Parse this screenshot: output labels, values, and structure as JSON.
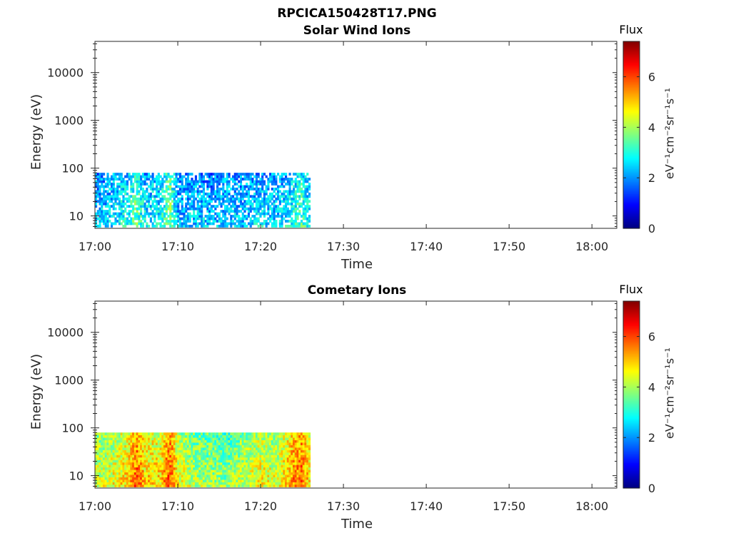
{
  "figure": {
    "title": "RPCICA150428T17.PNG"
  },
  "colorbar": {
    "label": "Flux",
    "unit_label": "eV⁻¹cm⁻²sr⁻¹s⁻¹",
    "colormap": "jet",
    "range": [
      0,
      7.4
    ],
    "ticks": [
      "0",
      "2",
      "4",
      "6"
    ]
  },
  "chart_data": [
    {
      "type": "heatmap",
      "title": "Solar Wind Ions",
      "xlabel": "Time",
      "ylabel": "Energy (eV)",
      "yscale": "log",
      "ylim": [
        5.5,
        45000
      ],
      "xlim": [
        "17:00",
        "18:03"
      ],
      "x_ticks": [
        "17:00",
        "17:10",
        "17:20",
        "17:30",
        "17:40",
        "17:50",
        "18:00"
      ],
      "y_ticks": [
        "10",
        "100",
        "1000",
        "10000"
      ],
      "data_time_range": [
        "17:00",
        "17:26"
      ],
      "data_energy_range": [
        5.8,
        80
      ],
      "profile": {
        "times": [
          "17:00",
          "17:02",
          "17:04",
          "17:05",
          "17:06",
          "17:08",
          "17:09",
          "17:10",
          "17:12",
          "17:14",
          "17:16",
          "17:18",
          "17:20",
          "17:22",
          "17:24",
          "17:25",
          "17:26"
        ],
        "flux": [
          2.4,
          2.6,
          3.0,
          3.6,
          2.7,
          2.8,
          3.9,
          2.4,
          2.5,
          2.3,
          2.6,
          2.4,
          2.7,
          2.5,
          3.0,
          3.4,
          2.6
        ]
      },
      "colorbar_label": "Flux"
    },
    {
      "type": "heatmap",
      "title": "Cometary Ions",
      "xlabel": "Time",
      "ylabel": "Energy (eV)",
      "yscale": "log",
      "ylim": [
        5.5,
        45000
      ],
      "xlim": [
        "17:00",
        "18:03"
      ],
      "x_ticks": [
        "17:00",
        "17:10",
        "17:20",
        "17:30",
        "17:40",
        "17:50",
        "18:00"
      ],
      "y_ticks": [
        "10",
        "100",
        "1000",
        "10000"
      ],
      "data_time_range": [
        "17:00",
        "17:26"
      ],
      "data_energy_range": [
        5.8,
        80
      ],
      "profile": {
        "times": [
          "17:00",
          "17:02",
          "17:04",
          "17:05",
          "17:06",
          "17:08",
          "17:09",
          "17:10",
          "17:12",
          "17:14",
          "17:16",
          "17:18",
          "17:20",
          "17:22",
          "17:24",
          "17:25",
          "17:26"
        ],
        "flux": [
          4.3,
          4.5,
          5.0,
          5.9,
          5.0,
          4.9,
          6.1,
          4.6,
          4.1,
          4.0,
          3.8,
          4.3,
          4.7,
          4.4,
          5.5,
          5.8,
          4.8
        ]
      },
      "colorbar_label": "Flux"
    }
  ]
}
